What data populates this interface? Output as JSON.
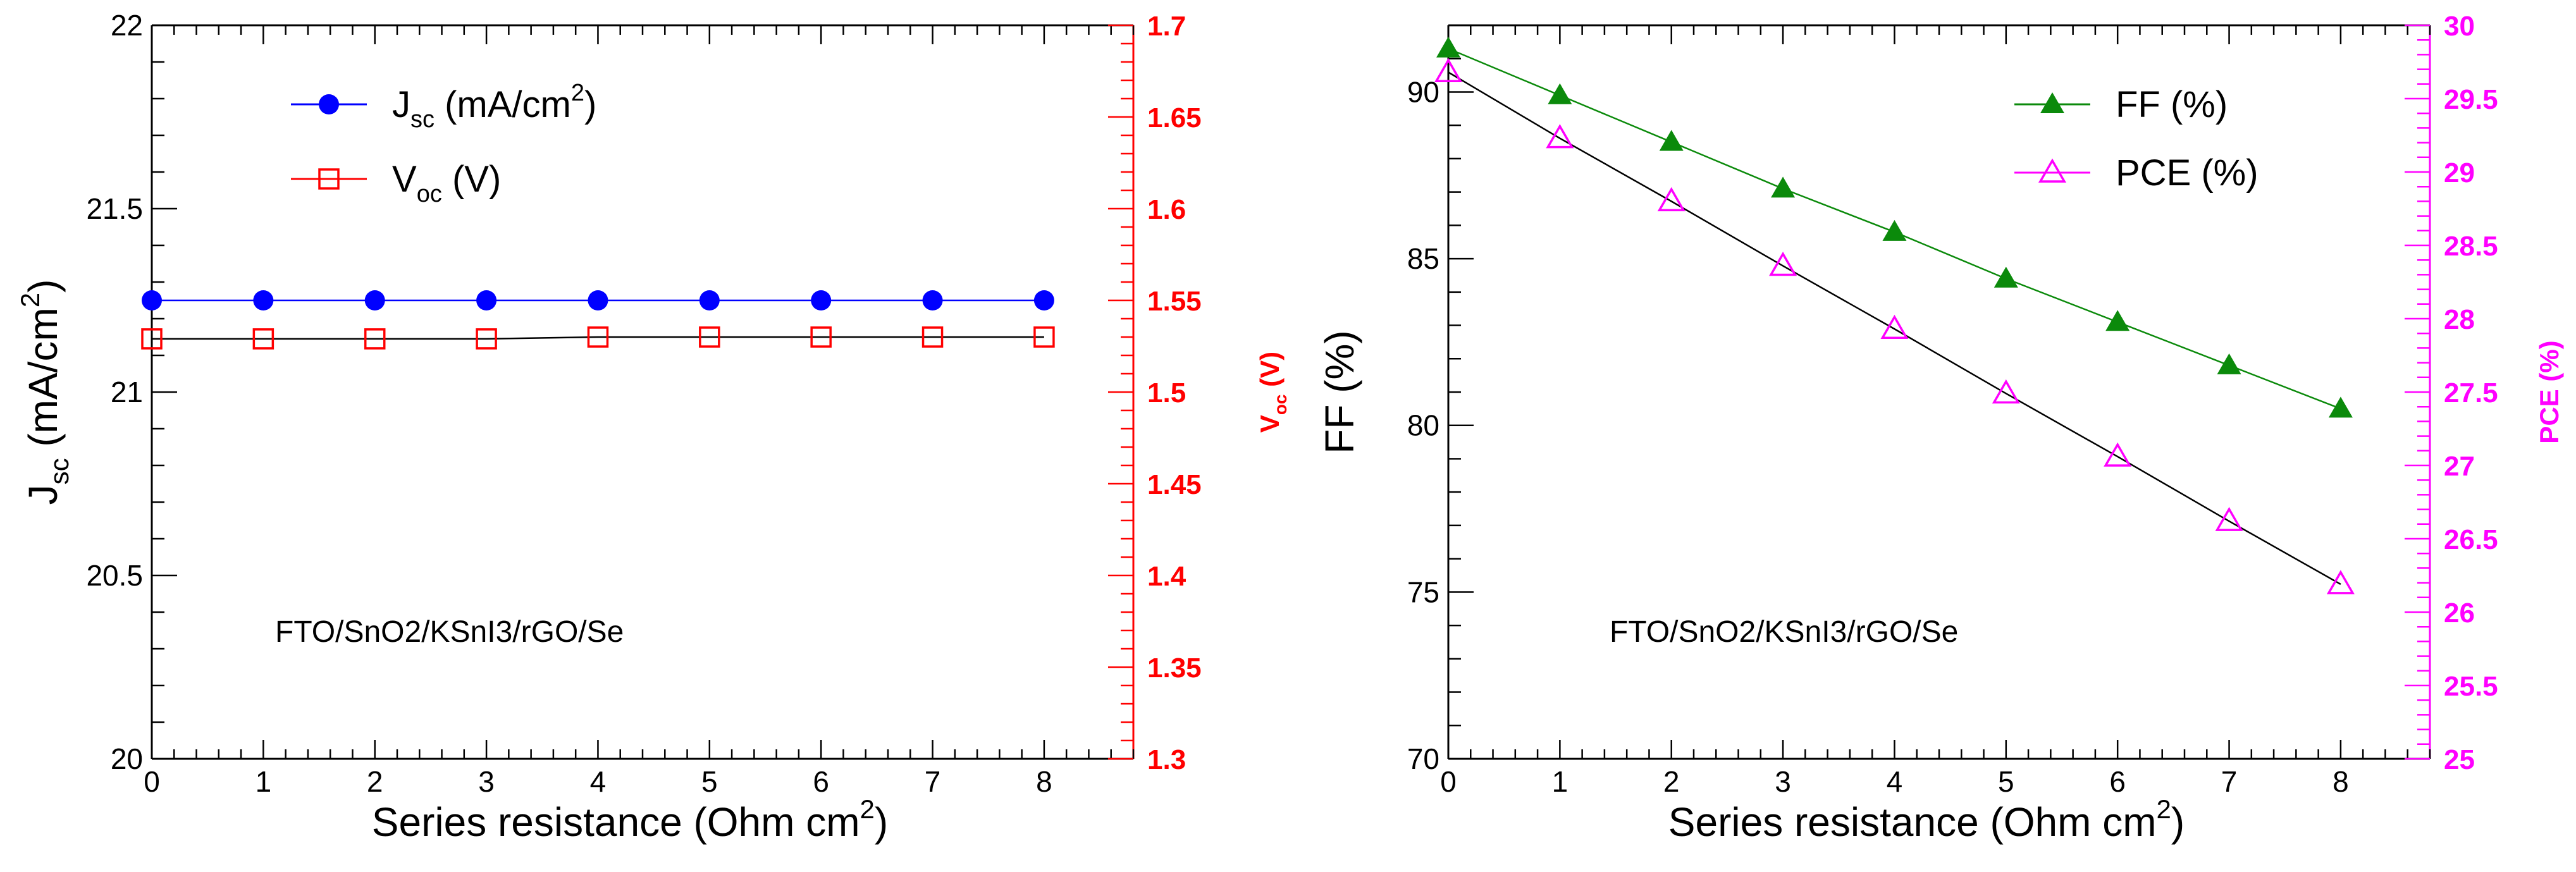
{
  "colors": {
    "axis": "#000000",
    "jsc": "#0000ff",
    "voc": "#ff0000",
    "ff": "#0b8a0b",
    "pce": "#ff00ff",
    "fit_black": "#000000"
  },
  "chart_data": [
    {
      "type": "line",
      "annotation": "FTO/SnO2/KSnI3/rGO/Se",
      "xlabel": {
        "main": "Series resistance (Ohm cm",
        "sup": "2",
        "end": ")"
      },
      "ylabel_left": {
        "main": "J",
        "sub": "sc",
        "mid": " (mA/cm",
        "sup": "2",
        "end": ")"
      },
      "ylabel_right": {
        "main": "V",
        "sub": "oc",
        "end": " (V)"
      },
      "xlim": [
        0,
        8.8
      ],
      "ylim_left": [
        20,
        22
      ],
      "ylim_right": [
        1.3,
        1.7
      ],
      "x_ticks": [
        "0",
        "1",
        "2",
        "3",
        "4",
        "5",
        "6",
        "7",
        "8"
      ],
      "y_left_ticks": [
        "20",
        "20.5",
        "21",
        "21.5",
        "22"
      ],
      "y_right_ticks": [
        "1.3",
        "1.35",
        "1.4",
        "1.45",
        "1.5",
        "1.55",
        "1.6",
        "1.65",
        "1.7"
      ],
      "legend": [
        {
          "main": "J",
          "sub": "sc",
          "rest": " (mA/cm",
          "sup": "2",
          "end": ")"
        },
        {
          "main": "V",
          "sub": "oc",
          "rest": " (V)",
          "sup": "",
          "end": ""
        }
      ],
      "series": [
        {
          "name": "Jsc (mA/cm2)",
          "axis": "left",
          "marker": "filled-circle",
          "x": [
            0,
            1,
            2,
            3,
            4,
            5,
            6,
            7,
            8
          ],
          "values": [
            21.25,
            21.25,
            21.25,
            21.25,
            21.25,
            21.25,
            21.25,
            21.25,
            21.25
          ]
        },
        {
          "name": "Voc (V)",
          "axis": "right",
          "marker": "open-square",
          "x": [
            0,
            1,
            2,
            3,
            4,
            5,
            6,
            7,
            8
          ],
          "values": [
            1.529,
            1.529,
            1.529,
            1.529,
            1.53,
            1.53,
            1.53,
            1.53,
            1.53
          ]
        }
      ]
    },
    {
      "type": "line",
      "annotation": "FTO/SnO2/KSnI3/rGO/Se",
      "xlabel": {
        "main": "Series resistance (Ohm cm",
        "sup": "2",
        "end": ")"
      },
      "ylabel_left": {
        "main": "FF (%)"
      },
      "ylabel_right": {
        "main": "PCE (%)"
      },
      "xlim": [
        0,
        8.8
      ],
      "ylim_left": [
        70,
        92
      ],
      "ylim_right": [
        25,
        30
      ],
      "x_ticks": [
        "0",
        "1",
        "2",
        "3",
        "4",
        "5",
        "6",
        "7",
        "8"
      ],
      "y_left_ticks": [
        "70",
        "75",
        "80",
        "85",
        "90"
      ],
      "y_right_ticks": [
        "25",
        "25.5",
        "26",
        "26.5",
        "27",
        "27.5",
        "28",
        "28.5",
        "29",
        "29.5",
        "30"
      ],
      "legend": [
        {
          "main": "FF (%)"
        },
        {
          "main": "PCE (%)"
        }
      ],
      "series": [
        {
          "name": "FF (%)",
          "axis": "left",
          "marker": "filled-triangle",
          "x": [
            0,
            1,
            2,
            3,
            4,
            5,
            6,
            7,
            8
          ],
          "values": [
            91.3,
            89.9,
            88.5,
            87.1,
            85.8,
            84.4,
            83.1,
            81.8,
            80.5
          ]
        },
        {
          "name": "PCE (%)",
          "axis": "right",
          "marker": "open-triangle",
          "x": [
            0,
            1,
            2,
            3,
            4,
            5,
            6,
            7,
            8
          ],
          "values": [
            29.68,
            29.23,
            28.8,
            28.36,
            27.93,
            27.49,
            27.06,
            26.62,
            26.19
          ]
        }
      ]
    }
  ]
}
